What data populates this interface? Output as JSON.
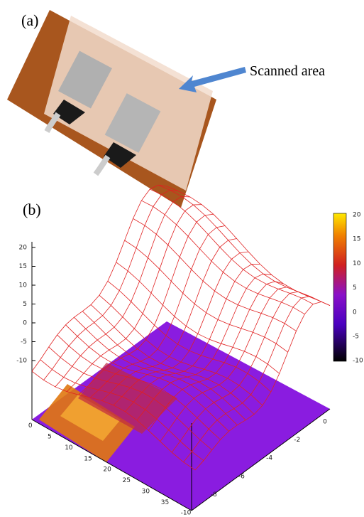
{
  "panel_a": {
    "label": "(a)",
    "annotation": "Scanned area"
  },
  "panel_b": {
    "label": "(b)",
    "z_ticks": [
      20,
      15,
      10,
      5,
      0,
      -5,
      -10
    ],
    "colorbar_ticks": [
      20,
      15,
      10,
      5,
      0,
      -5,
      -10
    ],
    "x_ticks": [
      0,
      5,
      10,
      15,
      20,
      25,
      30,
      35
    ],
    "y_ticks": [
      0,
      -2,
      -4,
      -6,
      -8,
      -10
    ]
  }
}
